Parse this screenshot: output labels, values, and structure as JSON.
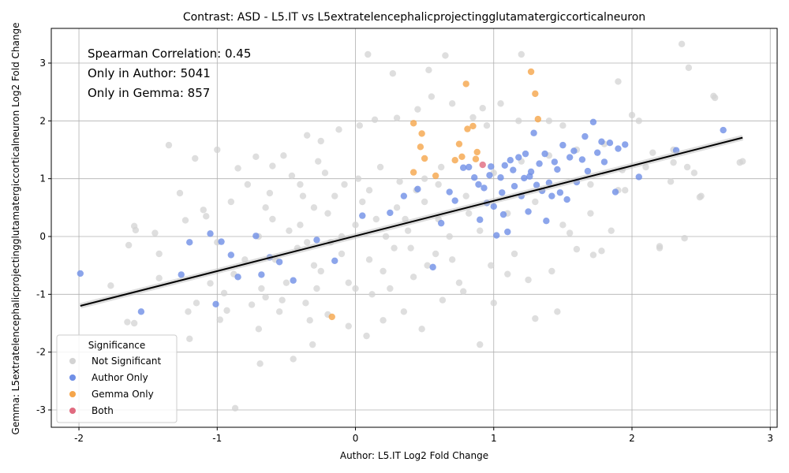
{
  "chart_data": {
    "type": "scatter",
    "title": "Contrast: ASD - L5.IT vs L5extratelencephalicprojectingglutamatergiccorticalneuron",
    "xlabel": "Author: L5.IT Log2 Fold Change",
    "ylabel": "Gemma: L5extratelencephalicprojectingglutamatergiccorticalneuron Log2 Fold Change",
    "xlim": [
      -2.2,
      3.05
    ],
    "ylim": [
      -3.3,
      3.6
    ],
    "x_ticks": [
      -2,
      -1,
      0,
      1,
      2,
      3
    ],
    "y_ticks": [
      -3,
      -2,
      -1,
      0,
      1,
      2,
      3
    ],
    "grid": true,
    "annotations": [
      "Spearman Correlation: 0.45",
      "Only in Author: 5041",
      "Only in Gemma: 857"
    ],
    "legend": {
      "title": "Significance",
      "placement": "lower-left",
      "entries": [
        {
          "label": "Not Significant",
          "color": "#d3d3d3"
        },
        {
          "label": "Author Only",
          "color": "#6f8fe6"
        },
        {
          "label": "Gemma Only",
          "color": "#f5a54a"
        },
        {
          "label": "Both",
          "color": "#e06a7f"
        }
      ]
    },
    "regression_line": {
      "x": [
        -1.99,
        2.8
      ],
      "y": [
        -1.2,
        1.71
      ],
      "color": "#000000"
    },
    "series": [
      {
        "name": "Not Significant",
        "color": "#d3d3d3",
        "points": [
          [
            -0.9,
            0.6
          ],
          [
            -0.8,
            -0.4
          ],
          [
            -0.6,
            0.3
          ],
          [
            -0.5,
            -0.8
          ],
          [
            -0.4,
            0.9
          ],
          [
            -0.3,
            -0.5
          ],
          [
            -0.2,
            0.4
          ],
          [
            -0.1,
            -0.3
          ],
          [
            0.0,
            0.2
          ],
          [
            0.1,
            0.8
          ],
          [
            0.2,
            -0.6
          ],
          [
            0.3,
            0.5
          ],
          [
            0.4,
            -0.2
          ],
          [
            0.5,
            1.0
          ],
          [
            0.6,
            0.3
          ],
          [
            0.7,
            -0.4
          ],
          [
            0.8,
            0.7
          ],
          [
            0.9,
            0.1
          ],
          [
            1.0,
            1.1
          ],
          [
            1.1,
            0.4
          ],
          [
            1.2,
            1.3
          ],
          [
            1.3,
            0.6
          ],
          [
            1.4,
            1.4
          ],
          [
            1.5,
            0.2
          ],
          [
            1.6,
            1.5
          ],
          [
            1.7,
            0.9
          ],
          [
            1.8,
            1.6
          ],
          [
            1.9,
            0.8
          ],
          [
            2.0,
            2.1
          ],
          [
            2.1,
            1.2
          ],
          [
            2.2,
            -0.2
          ],
          [
            2.3,
            1.5
          ],
          [
            2.4,
            1.2
          ],
          [
            2.5,
            0.7
          ],
          [
            2.6,
            2.4
          ],
          [
            2.8,
            1.3
          ],
          [
            2.36,
            3.33
          ],
          [
            2.41,
            2.92
          ],
          [
            2.38,
            -0.03
          ],
          [
            1.9,
            2.68
          ],
          [
            1.2,
            3.15
          ],
          [
            0.65,
            3.13
          ],
          [
            0.09,
            3.15
          ],
          [
            0.27,
            2.82
          ],
          [
            0.53,
            2.88
          ],
          [
            0.92,
            2.22
          ],
          [
            -0.87,
            -2.97
          ],
          [
            -0.69,
            -2.2
          ],
          [
            -0.45,
            -2.12
          ],
          [
            -0.31,
            -1.87
          ],
          [
            -1.6,
            -1.5
          ],
          [
            -1.65,
            -1.48
          ],
          [
            -1.77,
            -0.85
          ],
          [
            -1.64,
            -0.15
          ],
          [
            -1.6,
            0.18
          ],
          [
            -1.59,
            0.11
          ],
          [
            -1.45,
            0.06
          ],
          [
            -1.42,
            -0.3
          ],
          [
            -1.42,
            -0.72
          ],
          [
            -1.35,
            1.58
          ],
          [
            -1.27,
            0.75
          ],
          [
            -1.23,
            0.28
          ],
          [
            -1.21,
            -1.3
          ],
          [
            -1.2,
            -1.77
          ],
          [
            -1.16,
            1.35
          ],
          [
            -1.15,
            -1.15
          ],
          [
            -1.1,
            0.46
          ],
          [
            -1.05,
            -0.81
          ],
          [
            -1.0,
            1.5
          ],
          [
            -0.98,
            -1.44
          ],
          [
            -0.95,
            -0.98
          ],
          [
            -0.93,
            -1.28
          ],
          [
            -0.85,
            1.18
          ],
          [
            -0.75,
            -1.18
          ],
          [
            -0.72,
            1.38
          ],
          [
            -0.7,
            -1.6
          ],
          [
            -0.65,
            -1.05
          ],
          [
            -0.6,
            1.22
          ],
          [
            -0.55,
            -1.3
          ],
          [
            -0.52,
            1.4
          ],
          [
            -0.35,
            1.75
          ],
          [
            -0.33,
            -1.45
          ],
          [
            -0.25,
            1.65
          ],
          [
            -0.2,
            -1.35
          ],
          [
            -0.12,
            1.85
          ],
          [
            -0.05,
            -1.55
          ],
          [
            0.03,
            1.92
          ],
          [
            0.08,
            -1.72
          ],
          [
            0.14,
            2.02
          ],
          [
            0.2,
            -1.45
          ],
          [
            0.3,
            2.05
          ],
          [
            0.35,
            -1.3
          ],
          [
            0.45,
            2.2
          ],
          [
            0.48,
            -1.6
          ],
          [
            0.55,
            2.42
          ],
          [
            0.63,
            -1.1
          ],
          [
            0.7,
            2.3
          ],
          [
            0.78,
            -0.95
          ],
          [
            0.85,
            2.06
          ],
          [
            0.9,
            -1.87
          ],
          [
            0.95,
            1.92
          ],
          [
            1.0,
            -1.15
          ],
          [
            1.05,
            2.3
          ],
          [
            1.1,
            -0.65
          ],
          [
            1.18,
            2.0
          ],
          [
            1.3,
            -1.42
          ],
          [
            1.4,
            2.0
          ],
          [
            1.46,
            -1.3
          ],
          [
            1.5,
            1.92
          ],
          [
            1.6,
            -0.22
          ],
          [
            1.72,
            -0.32
          ],
          [
            1.78,
            -0.25
          ],
          [
            1.85,
            0.1
          ],
          [
            1.95,
            0.8
          ],
          [
            2.05,
            2.0
          ],
          [
            2.15,
            1.45
          ],
          [
            2.28,
            0.95
          ],
          [
            2.3,
            1.28
          ],
          [
            2.45,
            1.1
          ],
          [
            2.49,
            0.68
          ],
          [
            2.59,
            2.43
          ],
          [
            2.78,
            1.28
          ],
          [
            2.2,
            -0.17
          ],
          [
            1.93,
            1.15
          ],
          [
            1.7,
            0.4
          ],
          [
            1.55,
            0.06
          ],
          [
            1.42,
            -0.6
          ],
          [
            1.25,
            -0.75
          ],
          [
            1.15,
            -0.3
          ],
          [
            0.98,
            -0.5
          ],
          [
            -0.4,
            0.2
          ],
          [
            -0.35,
            -0.1
          ],
          [
            -0.3,
            0.5
          ],
          [
            -0.25,
            -0.6
          ],
          [
            -0.15,
            0.7
          ],
          [
            -0.1,
            0.0
          ],
          [
            -0.05,
            -0.8
          ],
          [
            0.05,
            0.6
          ],
          [
            0.1,
            -0.4
          ],
          [
            0.15,
            0.3
          ],
          [
            0.25,
            -0.9
          ],
          [
            0.32,
            0.95
          ],
          [
            0.38,
            0.1
          ],
          [
            0.42,
            -0.7
          ],
          [
            0.5,
            0.6
          ],
          [
            0.58,
            -0.3
          ],
          [
            0.62,
            1.2
          ],
          [
            0.68,
            0.0
          ],
          [
            0.75,
            -0.8
          ],
          [
            0.82,
            0.4
          ],
          [
            -0.7,
            0.0
          ],
          [
            -0.65,
            0.5
          ],
          [
            -0.58,
            -0.4
          ],
          [
            -0.48,
            0.1
          ],
          [
            -0.42,
            -0.2
          ],
          [
            -0.38,
            0.7
          ],
          [
            -0.28,
            -0.9
          ],
          [
            -0.22,
            1.1
          ],
          [
            -0.18,
            -0.1
          ],
          [
            -0.08,
            0.9
          ],
          [
            0.0,
            -0.9
          ],
          [
            0.02,
            1.0
          ],
          [
            0.12,
            -1.0
          ],
          [
            0.18,
            1.2
          ],
          [
            0.22,
            0.0
          ],
          [
            0.28,
            -0.2
          ],
          [
            0.36,
            0.3
          ],
          [
            0.44,
            0.8
          ],
          [
            0.52,
            -0.5
          ],
          [
            0.6,
            0.9
          ],
          [
            -1.0,
            -0.1
          ],
          [
            -1.08,
            0.35
          ],
          [
            -0.88,
            -0.65
          ],
          [
            -0.78,
            0.9
          ],
          [
            -0.68,
            -0.9
          ],
          [
            -0.62,
            0.75
          ],
          [
            -0.53,
            -1.1
          ],
          [
            -0.46,
            1.05
          ],
          [
            -0.36,
            -1.15
          ],
          [
            -0.27,
            1.3
          ]
        ]
      },
      {
        "name": "Author Only",
        "color": "#6f8fe6",
        "points": [
          [
            -1.99,
            -0.64
          ],
          [
            -1.55,
            -1.3
          ],
          [
            -1.26,
            -0.66
          ],
          [
            -1.2,
            -0.1
          ],
          [
            -1.05,
            0.05
          ],
          [
            -1.01,
            -1.17
          ],
          [
            -0.97,
            -0.09
          ],
          [
            -0.9,
            -0.32
          ],
          [
            -0.85,
            -0.7
          ],
          [
            -0.72,
            0.01
          ],
          [
            -0.68,
            -0.66
          ],
          [
            -0.62,
            -0.36
          ],
          [
            -0.55,
            -0.44
          ],
          [
            -0.45,
            -0.76
          ],
          [
            -0.28,
            -0.06
          ],
          [
            -0.15,
            -0.42
          ],
          [
            0.05,
            0.36
          ],
          [
            0.25,
            0.41
          ],
          [
            0.35,
            0.7
          ],
          [
            0.45,
            0.82
          ],
          [
            0.56,
            -0.53
          ],
          [
            0.62,
            0.23
          ],
          [
            0.68,
            0.77
          ],
          [
            0.72,
            0.62
          ],
          [
            0.78,
            1.19
          ],
          [
            0.82,
            1.2
          ],
          [
            0.86,
            1.02
          ],
          [
            0.9,
            0.29
          ],
          [
            0.93,
            0.84
          ],
          [
            0.95,
            0.58
          ],
          [
            0.98,
            1.21
          ],
          [
            1.0,
            0.52
          ],
          [
            1.02,
            0.02
          ],
          [
            1.05,
            1.02
          ],
          [
            1.07,
            0.38
          ],
          [
            1.08,
            1.23
          ],
          [
            1.1,
            0.08
          ],
          [
            1.12,
            1.32
          ],
          [
            1.15,
            0.87
          ],
          [
            1.18,
            1.37
          ],
          [
            1.2,
            0.7
          ],
          [
            1.23,
            1.43
          ],
          [
            1.25,
            0.43
          ],
          [
            1.27,
            1.12
          ],
          [
            1.29,
            1.79
          ],
          [
            1.31,
            0.89
          ],
          [
            1.33,
            1.26
          ],
          [
            1.35,
            0.79
          ],
          [
            1.37,
            1.43
          ],
          [
            1.38,
            0.27
          ],
          [
            1.4,
            0.93
          ],
          [
            1.42,
            0.7
          ],
          [
            1.44,
            1.29
          ],
          [
            1.46,
            1.16
          ],
          [
            1.48,
            0.76
          ],
          [
            1.5,
            1.58
          ],
          [
            1.53,
            0.64
          ],
          [
            1.55,
            1.37
          ],
          [
            1.58,
            1.48
          ],
          [
            1.6,
            0.94
          ],
          [
            1.64,
            1.33
          ],
          [
            1.66,
            1.73
          ],
          [
            1.68,
            1.13
          ],
          [
            1.72,
            1.98
          ],
          [
            1.75,
            1.45
          ],
          [
            1.78,
            1.64
          ],
          [
            1.8,
            1.29
          ],
          [
            1.84,
            1.62
          ],
          [
            1.88,
            0.77
          ],
          [
            1.9,
            1.52
          ],
          [
            1.95,
            1.59
          ],
          [
            2.05,
            1.03
          ],
          [
            2.32,
            1.49
          ],
          [
            2.66,
            1.84
          ],
          [
            1.22,
            1.01
          ],
          [
            1.06,
            0.76
          ],
          [
            0.97,
            1.06
          ],
          [
            0.89,
            0.9
          ],
          [
            1.14,
            1.15
          ],
          [
            1.26,
            1.04
          ]
        ]
      },
      {
        "name": "Gemma Only",
        "color": "#f5a54a",
        "points": [
          [
            -0.17,
            -1.39
          ],
          [
            0.42,
            1.11
          ],
          [
            0.42,
            1.96
          ],
          [
            0.47,
            1.55
          ],
          [
            0.5,
            1.35
          ],
          [
            0.48,
            1.78
          ],
          [
            0.72,
            1.32
          ],
          [
            0.75,
            1.6
          ],
          [
            0.77,
            1.38
          ],
          [
            0.8,
            2.64
          ],
          [
            0.81,
            1.86
          ],
          [
            0.85,
            1.91
          ],
          [
            0.87,
            1.34
          ],
          [
            1.27,
            2.85
          ],
          [
            1.3,
            2.47
          ],
          [
            1.32,
            2.03
          ],
          [
            0.88,
            1.46
          ],
          [
            0.58,
            1.05
          ]
        ]
      },
      {
        "name": "Both",
        "color": "#e06a7f",
        "points": [
          [
            0.92,
            1.24
          ]
        ]
      }
    ]
  }
}
